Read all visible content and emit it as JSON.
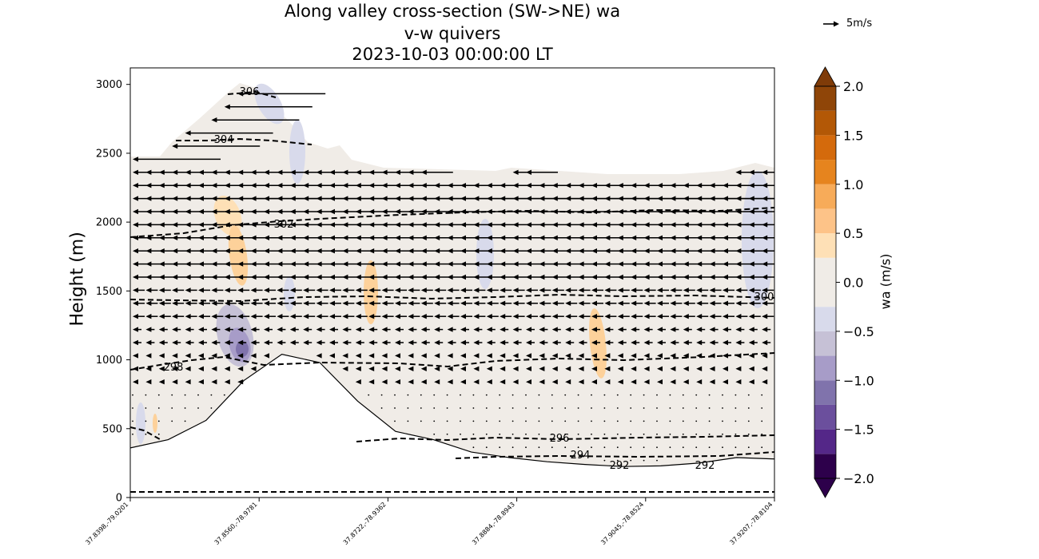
{
  "chart_data": {
    "type": "heatmap",
    "title_lines": [
      "Along valley cross-section (SW->NE) wa",
      "v-w quivers",
      "2023-10-03 00:00:00 LT"
    ],
    "ylabel": "Height (m)",
    "ylim": [
      0,
      3120
    ],
    "yticks": [
      0,
      500,
      1000,
      1500,
      2000,
      2500,
      3000
    ],
    "x_tick_labels": [
      "37.8398,-79.0201",
      "37.8560,-78.9781",
      "37.8722,-78.9362",
      "37.8884,-78.8943",
      "37.9045,-78.8524",
      "37.9207,-78.8104"
    ],
    "colorbar": {
      "label": "wa (m/s)",
      "levels": [
        -2.0,
        -1.75,
        -1.5,
        -1.25,
        -1.0,
        -0.75,
        -0.5,
        -0.25,
        0.0,
        0.25,
        0.5,
        0.75,
        1.0,
        1.25,
        1.5,
        1.75,
        2.0
      ],
      "tick_labels": [
        "2.0",
        "1.5",
        "1.0",
        "0.5",
        "0.0",
        "−0.5",
        "−1.0",
        "−1.5",
        "−2.0"
      ],
      "colors": [
        "#2d004b",
        "#542788",
        "#6b4f9d",
        "#8073ac",
        "#a79cc8",
        "#c6c1d6",
        "#d8daeb",
        "#f0ece7",
        "#f0ece7",
        "#fee0b6",
        "#fdc388",
        "#f7ab59",
        "#e6841e",
        "#d46a0c",
        "#b35806",
        "#8f4508"
      ],
      "extend_low": "#2d004b",
      "extend_high": "#7f3b08"
    },
    "quiver_key": {
      "label": "5m/s",
      "magnitude_ms": 5
    },
    "theta_contours": [
      {
        "value": 292,
        "labels": [
          "292",
          "292"
        ]
      },
      {
        "value": 294,
        "labels": [
          "294"
        ]
      },
      {
        "value": 296,
        "labels": [
          "296"
        ]
      },
      {
        "value": 298,
        "labels": [
          "298"
        ]
      },
      {
        "value": 300,
        "labels": [
          "300"
        ]
      },
      {
        "value": 302,
        "labels": [
          "302"
        ]
      },
      {
        "value": 304,
        "labels": [
          "304"
        ]
      },
      {
        "value": 306,
        "labels": [
          "306"
        ]
      }
    ],
    "terrain_height_m": [
      360,
      420,
      560,
      850,
      1040,
      980,
      700,
      480,
      420,
      330,
      290,
      260,
      240,
      225,
      230,
      250,
      290,
      280
    ],
    "wind_description": "Easterly flow (arrows pointing left) strongest above 1900 m, weak below 1000 m"
  }
}
